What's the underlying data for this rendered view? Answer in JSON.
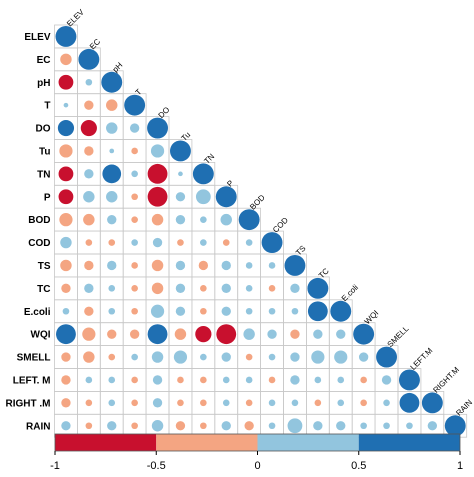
{
  "chart_data": {
    "type": "heatmap",
    "variables": [
      "ELEV",
      "EC",
      "pH",
      "T",
      "DO",
      "Tu",
      "TN",
      "P",
      "BOD",
      "COD",
      "TS",
      "TC",
      "E.coli",
      "WQI",
      "SMELL",
      "LEFT. M",
      "RIGHT .M",
      "RAIN"
    ],
    "column_labels": [
      "ELEV",
      "EC",
      "pH",
      "T",
      "DO",
      "Tu",
      "TN",
      "P",
      "BOD",
      "COD",
      "TS",
      "TC",
      "E.coli",
      "WQI",
      "SMELL",
      "LEFT.M",
      "RIGHT.M",
      "RAIN"
    ],
    "matrix": [
      [
        1
      ],
      [
        -0.3,
        1
      ],
      [
        -0.5,
        0.1,
        1
      ],
      [
        0.05,
        -0.2,
        -0.3,
        1
      ],
      [
        0.6,
        -0.6,
        0.3,
        0.2,
        1
      ],
      [
        -0.4,
        -0.2,
        0.05,
        -0.1,
        0.4,
        1
      ],
      [
        -0.5,
        0.2,
        0.8,
        0.1,
        -0.9,
        0.05,
        1
      ],
      [
        -0.5,
        0.3,
        0.3,
        -0.1,
        -0.9,
        0.2,
        0.5,
        1
      ],
      [
        -0.4,
        -0.3,
        0.2,
        -0.1,
        -0.3,
        0.2,
        0.1,
        0.3,
        1
      ],
      [
        0.3,
        -0.1,
        -0.1,
        0.1,
        0.2,
        -0.1,
        0.1,
        -0.1,
        0.1,
        1
      ],
      [
        -0.3,
        -0.2,
        0.2,
        -0.1,
        -0.3,
        0.2,
        -0.2,
        0.2,
        0.1,
        0.1,
        1
      ],
      [
        -0.2,
        0.2,
        0.1,
        -0.1,
        -0.3,
        0.2,
        -0.1,
        0.2,
        0.1,
        -0.1,
        0.2,
        1
      ],
      [
        0.1,
        -0.2,
        0.1,
        -0.1,
        0.4,
        0.2,
        -0.1,
        0.2,
        0.1,
        0.1,
        0.1,
        0.9,
        1
      ],
      [
        0.9,
        -0.4,
        -0.2,
        -0.2,
        0.9,
        -0.3,
        -0.6,
        -0.9,
        0.3,
        0.2,
        -0.2,
        0.2,
        0.2,
        1
      ],
      [
        -0.2,
        -0.3,
        -0.1,
        0.1,
        0.3,
        0.4,
        0.1,
        0.2,
        -0.1,
        0.1,
        0.2,
        0.4,
        0.4,
        0.2,
        1
      ],
      [
        -0.2,
        0.1,
        0.1,
        -0.1,
        0.2,
        -0.1,
        -0.1,
        0.1,
        0.1,
        -0.1,
        0.2,
        0.1,
        0.1,
        -0.1,
        0.2,
        1
      ],
      [
        -0.2,
        -0.1,
        0.1,
        -0.1,
        0.2,
        -0.1,
        -0.1,
        0.1,
        -0.1,
        0.1,
        0.1,
        -0.1,
        0.1,
        -0.1,
        0.1,
        0.9,
        1
      ],
      [
        0.2,
        -0.1,
        0.2,
        -0.1,
        0.3,
        -0.2,
        -0.1,
        0.2,
        -0.2,
        0.1,
        0.5,
        0.2,
        0.2,
        0.1,
        0.1,
        0.1,
        0.2,
        1
      ]
    ],
    "color_breaks": [
      -1,
      -0.5,
      0,
      0.5,
      1
    ],
    "colors": [
      "#c8102e",
      "#f4a582",
      "#92c5de",
      "#1f6fb2"
    ],
    "colorbar_ticks": [
      "-1",
      "-0.5",
      "0",
      "0.5",
      "1"
    ],
    "value_range": [
      -1,
      1
    ],
    "layout": "lower-triangle",
    "legend_position": "bottom"
  }
}
